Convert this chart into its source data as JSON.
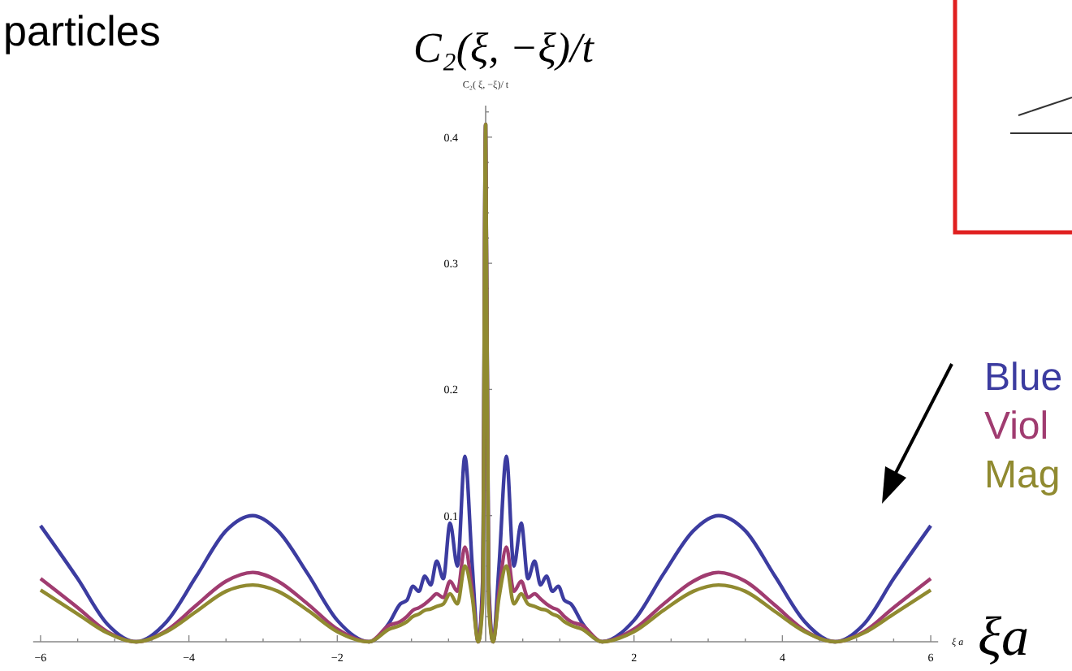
{
  "chart_data": {
    "type": "line",
    "title": "C₂(ξ, −ξ)/t",
    "ylabel": "C₂( ξ, −ξ)/ t",
    "xlabel": "ξ a",
    "annotations": [
      "particles",
      "ξa"
    ],
    "xlim": [
      -6.1,
      6.1
    ],
    "ylim": [
      0,
      0.425
    ],
    "xticks": [
      {
        "value": -6,
        "label": "−6"
      },
      {
        "value": -5.5,
        "label": null
      },
      {
        "value": -5,
        "label": null
      },
      {
        "value": -4.5,
        "label": null
      },
      {
        "value": -4,
        "label": "−4"
      },
      {
        "value": -3.5,
        "label": null
      },
      {
        "value": -3,
        "label": null
      },
      {
        "value": -2.5,
        "label": null
      },
      {
        "value": -2,
        "label": "−2"
      },
      {
        "value": -1.5,
        "label": null
      },
      {
        "value": -1,
        "label": null
      },
      {
        "value": -0.5,
        "label": null
      },
      {
        "value": 0.5,
        "label": null
      },
      {
        "value": 1,
        "label": null
      },
      {
        "value": 1.5,
        "label": null
      },
      {
        "value": 2,
        "label": "2"
      },
      {
        "value": 2.5,
        "label": null
      },
      {
        "value": 3,
        "label": null
      },
      {
        "value": 3.5,
        "label": null
      },
      {
        "value": 4,
        "label": "4"
      },
      {
        "value": 4.5,
        "label": null
      },
      {
        "value": 5,
        "label": null
      },
      {
        "value": 5.5,
        "label": null
      },
      {
        "value": 6,
        "label": "6"
      }
    ],
    "yticks": [
      {
        "value": 0.02,
        "label": null
      },
      {
        "value": 0.04,
        "label": null
      },
      {
        "value": 0.06,
        "label": null
      },
      {
        "value": 0.08,
        "label": null
      },
      0.1,
      {
        "value": 0.12,
        "label": null
      },
      {
        "value": 0.14,
        "label": null
      },
      {
        "value": 0.16,
        "label": null
      },
      {
        "value": 0.18,
        "label": null
      },
      0.2,
      {
        "value": 0.22,
        "label": null
      },
      {
        "value": 0.24,
        "label": null
      },
      {
        "value": 0.26,
        "label": null
      },
      {
        "value": 0.28,
        "label": null
      },
      0.3,
      {
        "value": 0.32,
        "label": null
      },
      {
        "value": 0.34,
        "label": null
      },
      {
        "value": 0.36,
        "label": null
      },
      {
        "value": 0.38,
        "label": null
      },
      0.4,
      {
        "value": 0.42,
        "label": null
      }
    ],
    "grid": false,
    "legend": "right",
    "marker": "none",
    "line_style": "solid",
    "x": [
      -6,
      -5.5,
      -5.1,
      -4.71,
      -4.3,
      -3.9,
      -3.5,
      -3.14,
      -2.8,
      -2.4,
      -2,
      -1.57,
      -1.3,
      -1.15,
      -1.06,
      -0.98,
      -0.9,
      -0.82,
      -0.74,
      -0.66,
      -0.57,
      -0.48,
      -0.38,
      -0.28,
      -0.18,
      -0.1,
      -0.04,
      0,
      0.04,
      0.1,
      0.18,
      0.28,
      0.38,
      0.48,
      0.57,
      0.66,
      0.74,
      0.82,
      0.9,
      0.98,
      1.06,
      1.15,
      1.3,
      1.57,
      2,
      2.4,
      2.8,
      3.14,
      3.5,
      3.9,
      4.3,
      4.71,
      5.1,
      5.5,
      6
    ],
    "series": [
      {
        "name": "Blue",
        "color": "#3c3ca0",
        "values": [
          0.092,
          0.05,
          0.014,
          0,
          0.016,
          0.052,
          0.088,
          0.1,
          0.088,
          0.054,
          0.017,
          0,
          0.015,
          0.03,
          0.033,
          0.044,
          0.04,
          0.052,
          0.045,
          0.064,
          0.05,
          0.094,
          0.06,
          0.147,
          0.06,
          0,
          0.05,
          0.41,
          0.05,
          0,
          0.06,
          0.147,
          0.06,
          0.094,
          0.05,
          0.064,
          0.045,
          0.052,
          0.04,
          0.044,
          0.033,
          0.03,
          0.015,
          0,
          0.017,
          0.054,
          0.088,
          0.1,
          0.088,
          0.052,
          0.016,
          0,
          0.014,
          0.05,
          0.092
        ]
      },
      {
        "name": "Viol",
        "color": "#a03c70",
        "values": [
          0.05,
          0.027,
          0.008,
          0,
          0.009,
          0.029,
          0.048,
          0.055,
          0.048,
          0.03,
          0.01,
          0,
          0.013,
          0.016,
          0.02,
          0.025,
          0.027,
          0.03,
          0.034,
          0.038,
          0.035,
          0.048,
          0.04,
          0.075,
          0.04,
          0,
          0.04,
          0.41,
          0.04,
          0,
          0.04,
          0.075,
          0.04,
          0.048,
          0.035,
          0.038,
          0.034,
          0.03,
          0.027,
          0.025,
          0.02,
          0.016,
          0.013,
          0,
          0.01,
          0.03,
          0.048,
          0.055,
          0.048,
          0.029,
          0.009,
          0,
          0.008,
          0.027,
          0.05
        ]
      },
      {
        "name": "Mag",
        "color": "#908a30",
        "values": [
          0.041,
          0.022,
          0.007,
          0,
          0.008,
          0.024,
          0.04,
          0.045,
          0.04,
          0.025,
          0.008,
          0,
          0.01,
          0.013,
          0.016,
          0.02,
          0.022,
          0.025,
          0.026,
          0.028,
          0.03,
          0.038,
          0.03,
          0.06,
          0.035,
          0,
          0.03,
          0.41,
          0.03,
          0,
          0.035,
          0.06,
          0.03,
          0.038,
          0.03,
          0.028,
          0.026,
          0.025,
          0.022,
          0.02,
          0.016,
          0.013,
          0.01,
          0,
          0.008,
          0.025,
          0.04,
          0.045,
          0.04,
          0.024,
          0.008,
          0,
          0.007,
          0.022,
          0.041
        ]
      }
    ]
  }
}
